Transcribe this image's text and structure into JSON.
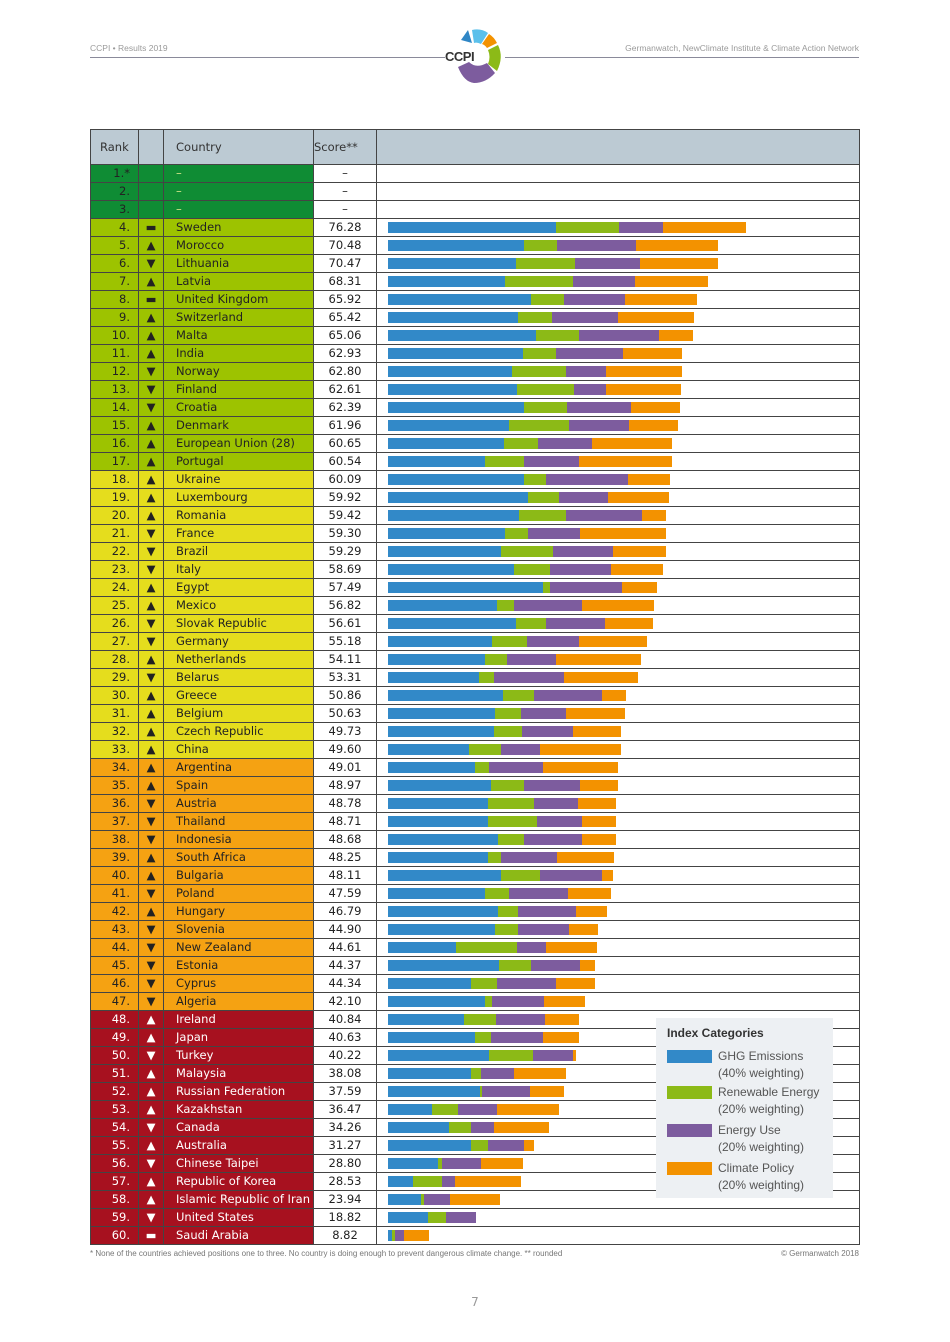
{
  "header": {
    "left": "CCPI • Results 2019",
    "right": "Germanwatch, NewClimate Institute & Climate Action Network",
    "logo_text": "CCPI"
  },
  "table": {
    "columns": [
      "Rank",
      "",
      "Country",
      "Score**",
      ""
    ]
  },
  "colors": {
    "very_high": "#0f8c34",
    "high": "#9dc300",
    "medium": "#e5dd1d",
    "low": "#f5a212",
    "very_low": "#a7111f",
    "ghg": "#3289c8",
    "renewable": "#8cba17",
    "energy_use": "#7d5c9e",
    "policy": "#f39200"
  },
  "legend": {
    "title": "Index Categories",
    "items": [
      {
        "label": "GHG Emissions",
        "sub": "(40% weighting)",
        "color": "#3289c8"
      },
      {
        "label": "Renewable Energy",
        "sub": "(20% weighting)",
        "color": "#8cba17"
      },
      {
        "label": "Energy Use",
        "sub": "(20% weighting)",
        "color": "#7d5c9e"
      },
      {
        "label": "Climate Policy",
        "sub": "(20% weighting)",
        "color": "#f39200"
      }
    ]
  },
  "footnote": "* None of the countries achieved positions one to three. No country is doing enough to prevent dangerous climate change.  ** rounded",
  "copyright": "© Germanwatch 2018",
  "page_number": "7",
  "chart_data": {
    "type": "bar",
    "stacked": true,
    "orientation": "horizontal",
    "title": "CCPI Results 2019",
    "legend": [
      "GHG Emissions (40% weighting)",
      "Renewable Energy (20% weighting)",
      "Energy Use (20% weighting)",
      "Climate Policy (20% weighting)"
    ],
    "legend_position": "bottom-right",
    "rows": [
      {
        "rank": "1.*",
        "trend": "",
        "country": "–",
        "score": "–",
        "band": "very_high",
        "segs": [
          0,
          0,
          0,
          0
        ]
      },
      {
        "rank": "2.",
        "trend": "",
        "country": "–",
        "score": "–",
        "band": "very_high",
        "segs": [
          0,
          0,
          0,
          0
        ]
      },
      {
        "rank": "3.",
        "trend": "",
        "country": "–",
        "score": "–",
        "band": "very_high",
        "segs": [
          0,
          0,
          0,
          0
        ]
      },
      {
        "rank": "4.",
        "trend": "same",
        "country": "Sweden",
        "score": "76.28",
        "band": "high",
        "segs": [
          168,
          63,
          44,
          83
        ]
      },
      {
        "rank": "5.",
        "trend": "up",
        "country": "Morocco",
        "score": "70.48",
        "band": "high",
        "segs": [
          136,
          33,
          79,
          82
        ]
      },
      {
        "rank": "6.",
        "trend": "down",
        "country": "Lithuania",
        "score": "70.47",
        "band": "high",
        "segs": [
          128,
          59,
          65,
          78
        ]
      },
      {
        "rank": "7.",
        "trend": "up",
        "country": "Latvia",
        "score": "68.31",
        "band": "high",
        "segs": [
          117,
          68,
          62,
          73
        ]
      },
      {
        "rank": "8.",
        "trend": "same",
        "country": "United Kingdom",
        "score": "65.92",
        "band": "high",
        "segs": [
          143,
          33,
          61,
          72
        ]
      },
      {
        "rank": "9.",
        "trend": "up",
        "country": "Switzerland",
        "score": "65.42",
        "band": "high",
        "segs": [
          130,
          34,
          66,
          76
        ]
      },
      {
        "rank": "10.",
        "trend": "up",
        "country": "Malta",
        "score": "65.06",
        "band": "high",
        "segs": [
          148,
          43,
          80,
          34
        ]
      },
      {
        "rank": "11.",
        "trend": "up",
        "country": "India",
        "score": "62.93",
        "band": "high",
        "segs": [
          135,
          33,
          67,
          59
        ]
      },
      {
        "rank": "12.",
        "trend": "down",
        "country": "Norway",
        "score": "62.80",
        "band": "high",
        "segs": [
          124,
          54,
          40,
          76
        ]
      },
      {
        "rank": "13.",
        "trend": "down",
        "country": "Finland",
        "score": "62.61",
        "band": "high",
        "segs": [
          129,
          57,
          32,
          75
        ]
      },
      {
        "rank": "14.",
        "trend": "down",
        "country": "Croatia",
        "score": "62.39",
        "band": "high",
        "segs": [
          136,
          43,
          64,
          49
        ]
      },
      {
        "rank": "15.",
        "trend": "up",
        "country": "Denmark",
        "score": "61.96",
        "band": "high",
        "segs": [
          121,
          60,
          60,
          49
        ]
      },
      {
        "rank": "16.",
        "trend": "up",
        "country": "European Union (28)",
        "score": "60.65",
        "band": "high",
        "segs": [
          116,
          34,
          54,
          80
        ]
      },
      {
        "rank": "17.",
        "trend": "up",
        "country": "Portugal",
        "score": "60.54",
        "band": "high",
        "segs": [
          97,
          39,
          55,
          93
        ]
      },
      {
        "rank": "18.",
        "trend": "up",
        "country": "Ukraine",
        "score": "60.09",
        "band": "medium",
        "segs": [
          136,
          22,
          82,
          42
        ]
      },
      {
        "rank": "19.",
        "trend": "up",
        "country": "Luxembourg",
        "score": "59.92",
        "band": "medium",
        "segs": [
          140,
          31,
          49,
          61
        ]
      },
      {
        "rank": "20.",
        "trend": "up",
        "country": "Romania",
        "score": "59.42",
        "band": "medium",
        "segs": [
          131,
          47,
          76,
          24
        ]
      },
      {
        "rank": "21.",
        "trend": "down",
        "country": "France",
        "score": "59.30",
        "band": "medium",
        "segs": [
          117,
          23,
          52,
          86
        ]
      },
      {
        "rank": "22.",
        "trend": "down",
        "country": "Brazil",
        "score": "59.29",
        "band": "medium",
        "segs": [
          113,
          52,
          60,
          53
        ]
      },
      {
        "rank": "23.",
        "trend": "down",
        "country": "Italy",
        "score": "58.69",
        "band": "medium",
        "segs": [
          126,
          36,
          61,
          52
        ]
      },
      {
        "rank": "24.",
        "trend": "up",
        "country": "Egypt",
        "score": "57.49",
        "band": "medium",
        "segs": [
          155,
          7,
          72,
          35
        ]
      },
      {
        "rank": "25.",
        "trend": "up",
        "country": "Mexico",
        "score": "56.82",
        "band": "medium",
        "segs": [
          109,
          17,
          68,
          72
        ]
      },
      {
        "rank": "26.",
        "trend": "down",
        "country": "Slovak Republic",
        "score": "56.61",
        "band": "medium",
        "segs": [
          128,
          30,
          59,
          48
        ]
      },
      {
        "rank": "27.",
        "trend": "down",
        "country": "Germany",
        "score": "55.18",
        "band": "medium",
        "segs": [
          104,
          35,
          52,
          68
        ]
      },
      {
        "rank": "28.",
        "trend": "up",
        "country": "Netherlands",
        "score": "54.11",
        "band": "medium",
        "segs": [
          97,
          22,
          49,
          85
        ]
      },
      {
        "rank": "29.",
        "trend": "down",
        "country": "Belarus",
        "score": "53.31",
        "band": "medium",
        "segs": [
          91,
          15,
          70,
          74
        ]
      },
      {
        "rank": "30.",
        "trend": "up",
        "country": "Greece",
        "score": "50.86",
        "band": "medium",
        "segs": [
          115,
          31,
          68,
          24
        ]
      },
      {
        "rank": "31.",
        "trend": "up",
        "country": "Belgium",
        "score": "50.63",
        "band": "medium",
        "segs": [
          107,
          26,
          45,
          59
        ]
      },
      {
        "rank": "32.",
        "trend": "up",
        "country": "Czech Republic",
        "score": "49.73",
        "band": "medium",
        "segs": [
          106,
          28,
          51,
          48
        ]
      },
      {
        "rank": "33.",
        "trend": "up",
        "country": "China",
        "score": "49.60",
        "band": "medium",
        "segs": [
          81,
          32,
          39,
          81
        ]
      },
      {
        "rank": "34.",
        "trend": "up",
        "country": "Argentina",
        "score": "49.01",
        "band": "low",
        "segs": [
          87,
          14,
          54,
          75
        ]
      },
      {
        "rank": "35.",
        "trend": "up",
        "country": "Spain",
        "score": "48.97",
        "band": "low",
        "segs": [
          103,
          33,
          56,
          38
        ]
      },
      {
        "rank": "36.",
        "trend": "down",
        "country": "Austria",
        "score": "48.78",
        "band": "low",
        "segs": [
          100,
          46,
          44,
          38
        ]
      },
      {
        "rank": "37.",
        "trend": "down",
        "country": "Thailand",
        "score": "48.71",
        "band": "low",
        "segs": [
          100,
          49,
          45,
          34
        ]
      },
      {
        "rank": "38.",
        "trend": "down",
        "country": "Indonesia",
        "score": "48.68",
        "band": "low",
        "segs": [
          110,
          26,
          58,
          34
        ]
      },
      {
        "rank": "39.",
        "trend": "up",
        "country": "South Africa",
        "score": "48.25",
        "band": "low",
        "segs": [
          100,
          13,
          56,
          57
        ]
      },
      {
        "rank": "40.",
        "trend": "up",
        "country": "Bulgaria",
        "score": "48.11",
        "band": "low",
        "segs": [
          113,
          39,
          62,
          11
        ]
      },
      {
        "rank": "41.",
        "trend": "down",
        "country": "Poland",
        "score": "47.59",
        "band": "low",
        "segs": [
          97,
          24,
          59,
          43
        ]
      },
      {
        "rank": "42.",
        "trend": "up",
        "country": "Hungary",
        "score": "46.79",
        "band": "low",
        "segs": [
          110,
          20,
          58,
          31
        ]
      },
      {
        "rank": "43.",
        "trend": "down",
        "country": "Slovenia",
        "score": "44.90",
        "band": "low",
        "segs": [
          107,
          23,
          51,
          29
        ]
      },
      {
        "rank": "44.",
        "trend": "down",
        "country": "New Zealand",
        "score": "44.61",
        "band": "low",
        "segs": [
          68,
          61,
          29,
          51
        ]
      },
      {
        "rank": "45.",
        "trend": "down",
        "country": "Estonia",
        "score": "44.37",
        "band": "low",
        "segs": [
          111,
          32,
          49,
          15
        ]
      },
      {
        "rank": "46.",
        "trend": "down",
        "country": "Cyprus",
        "score": "44.34",
        "band": "low",
        "segs": [
          83,
          26,
          59,
          39
        ]
      },
      {
        "rank": "47.",
        "trend": "down",
        "country": "Algeria",
        "score": "42.10",
        "band": "low",
        "segs": [
          97,
          7,
          52,
          41
        ]
      },
      {
        "rank": "48.",
        "trend": "up",
        "country": "Ireland",
        "score": "40.84",
        "band": "very_low",
        "segs": [
          76,
          32,
          49,
          34
        ]
      },
      {
        "rank": "49.",
        "trend": "up",
        "country": "Japan",
        "score": "40.63",
        "band": "very_low",
        "segs": [
          87,
          16,
          52,
          36
        ]
      },
      {
        "rank": "50.",
        "trend": "down",
        "country": "Turkey",
        "score": "40.22",
        "band": "very_low",
        "segs": [
          101,
          44,
          40,
          3
        ]
      },
      {
        "rank": "51.",
        "trend": "up",
        "country": "Malaysia",
        "score": "38.08",
        "band": "very_low",
        "segs": [
          83,
          10,
          33,
          52
        ]
      },
      {
        "rank": "52.",
        "trend": "up",
        "country": "Russian Federation",
        "score": "37.59",
        "band": "very_low",
        "segs": [
          92,
          2,
          48,
          34
        ]
      },
      {
        "rank": "53.",
        "trend": "up",
        "country": "Kazakhstan",
        "score": "36.47",
        "band": "very_low",
        "segs": [
          44,
          26,
          39,
          62
        ]
      },
      {
        "rank": "54.",
        "trend": "down",
        "country": "Canada",
        "score": "34.26",
        "band": "very_low",
        "segs": [
          61,
          22,
          23,
          55
        ]
      },
      {
        "rank": "55.",
        "trend": "up",
        "country": "Australia",
        "score": "31.27",
        "band": "very_low",
        "segs": [
          83,
          17,
          36,
          10
        ]
      },
      {
        "rank": "56.",
        "trend": "down",
        "country": "Chinese Taipei",
        "score": "28.80",
        "band": "very_low",
        "segs": [
          50,
          4,
          39,
          42
        ]
      },
      {
        "rank": "57.",
        "trend": "up",
        "country": "Republic of Korea",
        "score": "28.53",
        "band": "very_low",
        "segs": [
          25,
          29,
          13,
          66
        ]
      },
      {
        "rank": "58.",
        "trend": "up",
        "country": "Islamic Republic of Iran",
        "score": "23.94",
        "band": "very_low",
        "segs": [
          33,
          3,
          26,
          50
        ]
      },
      {
        "rank": "59.",
        "trend": "down",
        "country": "United States",
        "score": "18.82",
        "band": "very_low",
        "segs": [
          40,
          18,
          30,
          0
        ]
      },
      {
        "rank": "60.",
        "trend": "same",
        "country": "Saudi Arabia",
        "score": "8.82",
        "band": "very_low",
        "segs": [
          4,
          3,
          9,
          25
        ]
      }
    ]
  }
}
